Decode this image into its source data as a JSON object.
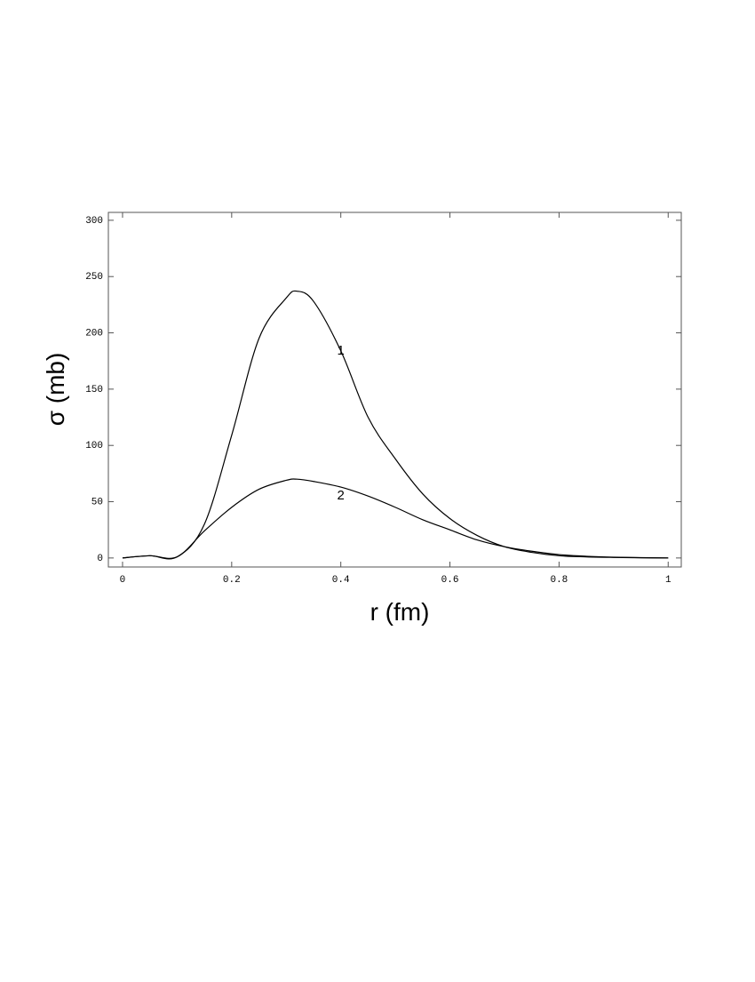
{
  "chart_data": {
    "type": "line",
    "xlabel": "r (fm)",
    "ylabel": "σ (mb)",
    "x": [
      0,
      0.05,
      0.1,
      0.15,
      0.2,
      0.25,
      0.3,
      0.32,
      0.35,
      0.4,
      0.45,
      0.5,
      0.55,
      0.6,
      0.65,
      0.7,
      0.75,
      0.8,
      0.85,
      0.9,
      0.95,
      1
    ],
    "series": [
      {
        "name": "1",
        "color": "#000000",
        "values": [
          0,
          2,
          1,
          30,
          109,
          195,
          231,
          237,
          228,
          184,
          125,
          88,
          57,
          35,
          20,
          10,
          5,
          2,
          1,
          0.5,
          0.2,
          0
        ]
      },
      {
        "name": "2",
        "color": "#000000",
        "values": [
          0,
          2,
          1,
          24,
          45,
          61,
          69,
          70,
          68,
          63,
          55,
          45,
          34,
          25,
          16,
          10,
          6,
          3,
          1.5,
          0.7,
          0.3,
          0
        ]
      }
    ],
    "xlim": [
      -0.026,
      1.024
    ],
    "ylim": [
      -8,
      307
    ],
    "xticks": [
      0,
      0.2,
      0.4,
      0.6,
      0.8,
      1
    ],
    "yticks": [
      0,
      50,
      100,
      150,
      200,
      250,
      300
    ],
    "grid": false
  }
}
